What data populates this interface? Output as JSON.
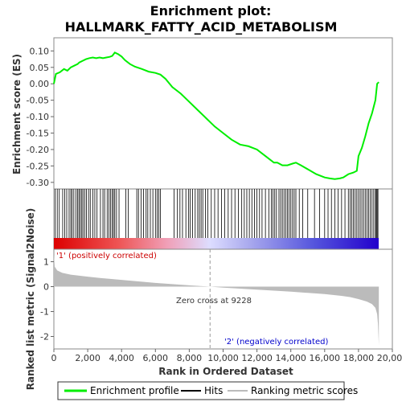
{
  "colors": {
    "enrichment": "#00ee00",
    "hits": "#000000",
    "ranking_fill": "#bbbbbb",
    "positive_label": "#cc0000",
    "negative_label": "#0000cc",
    "zero_line": "#999999"
  },
  "chart_data": [
    {
      "type": "line",
      "title_line1": "Enrichment plot:",
      "title_line2": "HALLMARK_FATTY_ACID_METABOLISM",
      "ylabel": "Enrichment score (ES)",
      "ylim": [
        -0.32,
        0.14
      ],
      "yticks": [
        0.1,
        0.05,
        0.0,
        -0.05,
        -0.1,
        -0.15,
        -0.2,
        -0.25,
        -0.3
      ],
      "ytick_labels": [
        "0.10",
        "0.05",
        "0.00",
        "-0.05",
        "-0.10",
        "-0.15",
        "-0.20",
        "-0.25",
        "-0.30"
      ],
      "grid": false,
      "series": [
        {
          "name": "Enrichment profile",
          "x": [
            0,
            120,
            350,
            600,
            800,
            1000,
            1200,
            1400,
            1500,
            1700,
            1900,
            2100,
            2300,
            2500,
            2700,
            2900,
            3100,
            3300,
            3450,
            3600,
            3800,
            4000,
            4200,
            4500,
            4800,
            5200,
            5600,
            6000,
            6300,
            6600,
            7000,
            7500,
            8000,
            8500,
            9000,
            9500,
            10000,
            10500,
            11000,
            11500,
            12000,
            12500,
            13000,
            13200,
            13500,
            13800,
            14100,
            14300,
            14600,
            15000,
            15500,
            16000,
            16300,
            16600,
            16900,
            17100,
            17400,
            17700,
            17900,
            18000,
            18200,
            18400,
            18600,
            18800,
            19000,
            19100,
            19200
          ],
          "y": [
            0.0,
            0.03,
            0.035,
            0.045,
            0.04,
            0.05,
            0.055,
            0.06,
            0.065,
            0.07,
            0.075,
            0.078,
            0.08,
            0.078,
            0.08,
            0.078,
            0.08,
            0.082,
            0.085,
            0.095,
            0.09,
            0.083,
            0.072,
            0.06,
            0.052,
            0.045,
            0.037,
            0.033,
            0.028,
            0.015,
            -0.01,
            -0.03,
            -0.055,
            -0.08,
            -0.105,
            -0.13,
            -0.15,
            -0.17,
            -0.185,
            -0.19,
            -0.2,
            -0.22,
            -0.24,
            -0.24,
            -0.248,
            -0.248,
            -0.243,
            -0.24,
            -0.248,
            -0.26,
            -0.275,
            -0.285,
            -0.288,
            -0.29,
            -0.288,
            -0.285,
            -0.275,
            -0.27,
            -0.265,
            -0.22,
            -0.195,
            -0.16,
            -0.12,
            -0.09,
            -0.05,
            0.0,
            0.005
          ]
        }
      ]
    },
    {
      "type": "bar",
      "ylabel": "Ranked list metric (Signal2Noise)",
      "xlabel": "Rank in Ordered Dataset",
      "xlim": [
        0,
        20000
      ],
      "xticks": [
        0,
        2000,
        4000,
        6000,
        8000,
        10000,
        12000,
        14000,
        16000,
        18000,
        20000
      ],
      "xtick_labels": [
        "0",
        "2,000",
        "4,000",
        "6,000",
        "8,000",
        "10,000",
        "12,000",
        "14,000",
        "16,000",
        "18,000",
        "20,000"
      ],
      "ylim": [
        -2.5,
        1.5
      ],
      "yticks": [
        1,
        0,
        -1,
        -2
      ],
      "ytick_labels": [
        "1",
        "0",
        "-1",
        "-2"
      ],
      "zero_cross_rank": 9228,
      "series": [
        {
          "name": "Ranking metric scores",
          "x": [
            0,
            50,
            200,
            500,
            1000,
            2000,
            3000,
            4000,
            5000,
            6000,
            7000,
            8000,
            9228,
            10000,
            11000,
            12000,
            13000,
            14000,
            15000,
            16000,
            17000,
            17500,
            18000,
            18500,
            18800,
            19000,
            19100,
            19150,
            19200
          ],
          "y": [
            1.3,
            0.8,
            0.65,
            0.55,
            0.48,
            0.4,
            0.33,
            0.27,
            0.21,
            0.15,
            0.1,
            0.05,
            0.0,
            -0.04,
            -0.08,
            -0.12,
            -0.16,
            -0.2,
            -0.25,
            -0.3,
            -0.37,
            -0.42,
            -0.5,
            -0.6,
            -0.7,
            -0.85,
            -1.1,
            -1.5,
            -2.35
          ]
        }
      ]
    }
  ],
  "hits_ranks": [
    80,
    200,
    320,
    520,
    640,
    760,
    900,
    1000,
    1080,
    1180,
    1300,
    1400,
    1480,
    1560,
    1650,
    1720,
    1820,
    1920,
    2050,
    2150,
    2300,
    2420,
    2550,
    2750,
    2900,
    3000,
    3150,
    3250,
    3350,
    3450,
    3520,
    3600,
    3700,
    3850,
    4250,
    4400,
    4900,
    5000,
    5150,
    5300,
    5450,
    5550,
    5700,
    5850,
    6000,
    6100,
    6200,
    6300,
    7100,
    7300,
    7450,
    7600,
    7800,
    7950,
    8050,
    8200,
    8350,
    8500,
    8600,
    8700,
    8800,
    8950,
    9100,
    9300,
    9500,
    9700,
    9900,
    10100,
    10300,
    10500,
    10700,
    10900,
    11100,
    11250,
    11400,
    11550,
    11700,
    11850,
    12000,
    12150,
    12300,
    12500,
    12700,
    12850,
    12950,
    13050,
    13150,
    13300,
    13400,
    13500,
    13600,
    13700,
    13800,
    13900,
    14000,
    14100,
    14200,
    14300,
    14500,
    14700,
    15000,
    15400,
    15700,
    16000,
    16200,
    16400,
    16600,
    16800,
    17000,
    17200,
    17400,
    17500,
    17600,
    17700,
    17800,
    17900,
    18000,
    18100,
    18200,
    18300,
    18400,
    18500,
    18600,
    18700,
    18800,
    18900,
    19000,
    19050,
    19100,
    19150
  ],
  "labels": {
    "positive_correlated": "'1' (positively correlated)",
    "negative_correlated": "'2' (negatively correlated)",
    "zero_cross": "Zero cross at 9228"
  },
  "legend": {
    "items": [
      {
        "label": "Enrichment profile",
        "color": "#00ee00"
      },
      {
        "label": "Hits",
        "color": "#000000"
      },
      {
        "label": "Ranking metric scores",
        "color": "#bbbbbb"
      }
    ]
  }
}
